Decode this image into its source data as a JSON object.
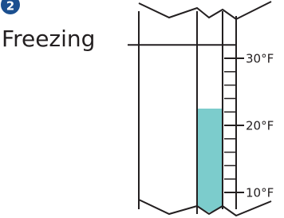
{
  "chart_data": {
    "type": "thermometer",
    "badge": "2",
    "annotation": {
      "label": "Freezing",
      "value": 32
    },
    "value": 22.5,
    "color": "#7ccccc",
    "ylim": [
      7.5,
      37.5
    ],
    "yticks": [
      {
        "value": 10,
        "label": "10°F"
      },
      {
        "value": 20,
        "label": "20°F"
      },
      {
        "value": 30,
        "label": "30°F"
      }
    ],
    "minor_ticks": [
      12,
      14,
      16,
      18,
      22,
      24,
      26,
      28
    ]
  }
}
